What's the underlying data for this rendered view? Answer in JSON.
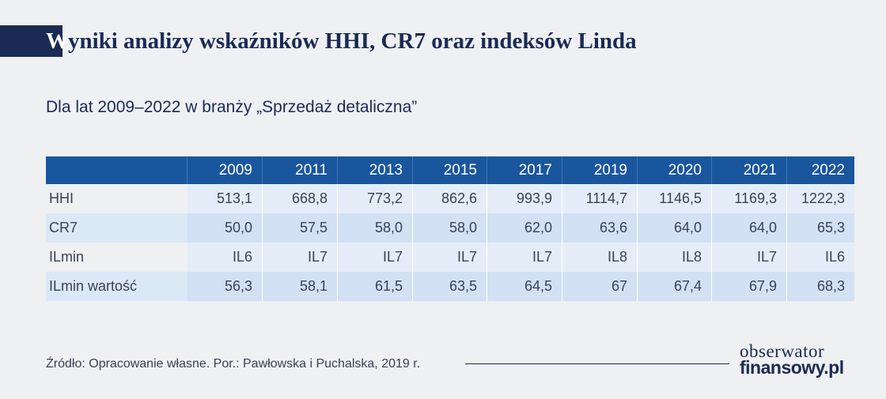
{
  "header": {
    "title_first_letter": "W",
    "title_rest": "yniki analizy wskaźników HHI, CR7 oraz indeksów Linda",
    "subtitle": "Dla lat 2009–2022 w branży „Sprzedaż detaliczna”"
  },
  "chart_data": {
    "type": "table",
    "title": "Wyniki analizy wskaźników HHI, CR7 oraz indeksów Linda",
    "subtitle": "Dla lat 2009–2022 w branży „Sprzedaż detaliczna”",
    "columns": [
      "2009",
      "2011",
      "2013",
      "2015",
      "2017",
      "2019",
      "2020",
      "2021",
      "2022"
    ],
    "rows": [
      {
        "label": "HHI",
        "values": [
          "513,1",
          "668,8",
          "773,2",
          "862,6",
          "993,9",
          "1114,7",
          "1146,5",
          "1169,3",
          "1222,3"
        ]
      },
      {
        "label": "CR7",
        "values": [
          "50,0",
          "57,5",
          "58,0",
          "58,0",
          "62,0",
          "63,6",
          "64,0",
          "64,0",
          "65,3"
        ]
      },
      {
        "label": "ILmin",
        "values": [
          "IL6",
          "IL7",
          "IL7",
          "IL7",
          "IL7",
          "IL8",
          "IL8",
          "IL7",
          "IL6"
        ]
      },
      {
        "label": "ILmin wartość",
        "values": [
          "56,3",
          "58,1",
          "61,5",
          "63,5",
          "64,5",
          "67",
          "67,4",
          "67,9",
          "68,3"
        ]
      }
    ]
  },
  "footer": {
    "source": "Źródło: Opracowanie własne. Por.: Pawłowska i Puchalska, 2019 r.",
    "logo_line1": "obserwator",
    "logo_line2": "finansowy.pl"
  },
  "colors": {
    "navy": "#1b2a55",
    "header_blue": "#1a569e",
    "background": "#eef0f2",
    "stripe_light": "#e4edf7",
    "stripe_blue": "#d2e2f4"
  }
}
